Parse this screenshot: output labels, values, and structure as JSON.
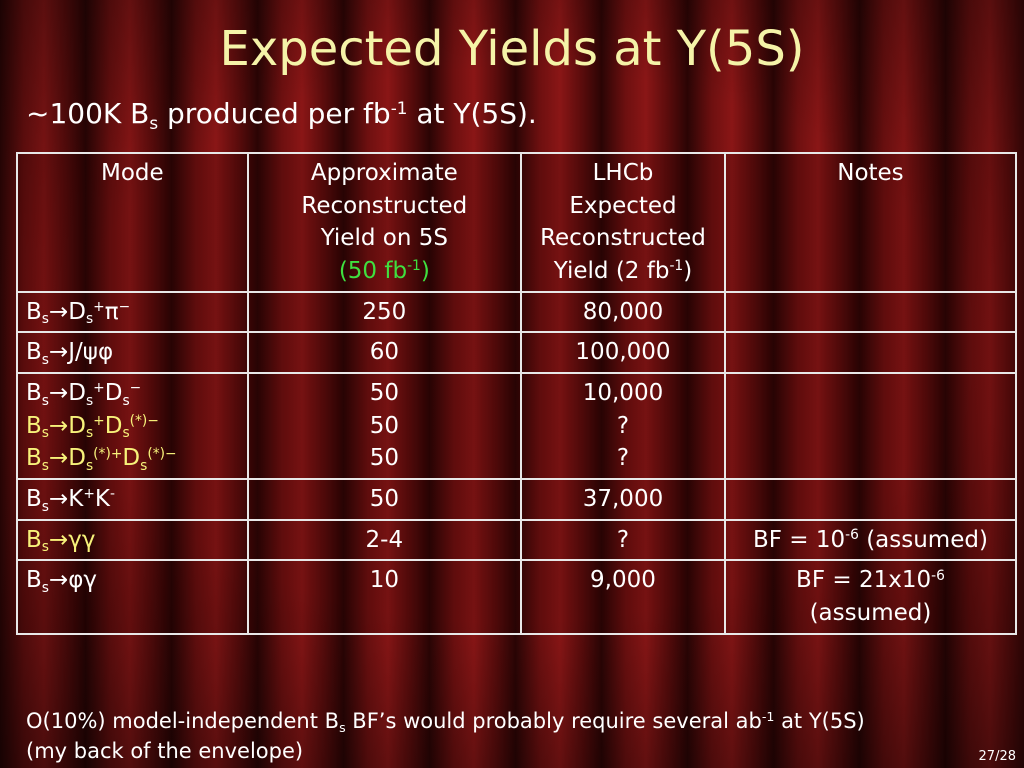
{
  "title": "Expected Yields at Y(5S)",
  "subtitle": {
    "prefix": "~100K B",
    "sub": "s",
    "middle": " produced per fb",
    "sup": "-1",
    "suffix": " at Y(5S)."
  },
  "table": {
    "headers": {
      "mode": "Mode",
      "belle_l1": "Approximate",
      "belle_l2": "Reconstructed",
      "belle_l3": "Yield on 5S",
      "belle_l4_pre": "(50 fb",
      "belle_l4_sup": "-1",
      "belle_l4_post": ")",
      "lhcb_l1": "LHCb",
      "lhcb_l2": "Expected",
      "lhcb_l3": "Reconstructed",
      "lhcb_l4_pre": "Yield (2 fb",
      "lhcb_l4_sup": "-1",
      "lhcb_l4_post": ")",
      "notes": "Notes"
    },
    "rows": {
      "r1": {
        "belle": "250",
        "lhcb": "80,000",
        "notes": ""
      },
      "r2": {
        "belle": "60",
        "lhcb": "100,000",
        "notes": ""
      },
      "r3": {
        "belle_a": "50",
        "belle_b": "50",
        "belle_c": "50",
        "lhcb_a": "10,000",
        "lhcb_b": "?",
        "lhcb_c": "?",
        "notes": ""
      },
      "r4": {
        "belle": "50",
        "lhcb": "37,000",
        "notes": ""
      },
      "r5": {
        "belle": "2-4",
        "lhcb": "?",
        "notes_pre": "BF = 10",
        "notes_sup": "-6",
        "notes_post": " (assumed)"
      },
      "r6": {
        "belle": "10",
        "lhcb": "9,000",
        "notes_l1_pre": "BF = 21x10",
        "notes_l1_sup": "-6",
        "notes_l2": "(assumed)"
      }
    }
  },
  "footnote": {
    "l1_a": "O(10%) model-independent B",
    "l1_sub": "s",
    "l1_b": " BF’s would probably require several ab",
    "l1_sup": "-1",
    "l1_c": " at Y(5S)",
    "l2": "(my back of the envelope)"
  },
  "page_number": "27/28",
  "colors": {
    "title": "#f5f3a8",
    "highlight_yellow": "#f7f27a",
    "highlight_green": "#3fe03f",
    "background_curtain": "#6e1010"
  }
}
